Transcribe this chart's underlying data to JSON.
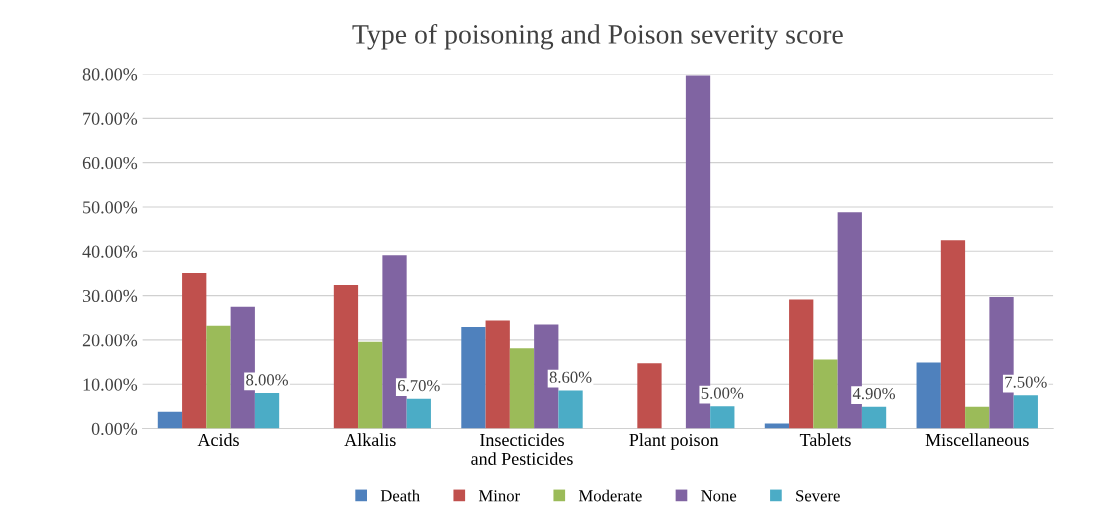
{
  "chart_data": {
    "type": "bar",
    "title": "Type of poisoning and Poison severity score",
    "categories": [
      "Acids",
      "Alkalis",
      "Insecticides\nand Pesticides",
      "Plant poison",
      "Tablets",
      "Miscellaneous"
    ],
    "series": [
      {
        "name": "Death",
        "color": "#4f81bd",
        "values": [
          3.8,
          0,
          22.9,
          0,
          1.1,
          14.9
        ]
      },
      {
        "name": "Minor",
        "color": "#c0504d",
        "values": [
          35.1,
          32.4,
          24.4,
          14.7,
          29.1,
          42.5
        ]
      },
      {
        "name": "Moderate",
        "color": "#9bbb59",
        "values": [
          23.2,
          19.6,
          18.1,
          0,
          15.6,
          4.9
        ]
      },
      {
        "name": "None",
        "color": "#8064a2",
        "values": [
          27.5,
          39.1,
          23.5,
          79.7,
          48.8,
          29.7
        ]
      },
      {
        "name": "Severe",
        "color": "#4bacc6",
        "values": [
          8.0,
          6.7,
          8.6,
          5.0,
          4.9,
          7.5
        ],
        "value_labels": [
          "8.00%",
          "6.70%",
          "8.60%",
          "5.00%",
          "4.90%",
          "7.50%"
        ]
      }
    ],
    "ylim": [
      0,
      80
    ],
    "yticks": [
      {
        "value": 0,
        "label": "0.00%"
      },
      {
        "value": 10,
        "label": "10.00%"
      },
      {
        "value": 20,
        "label": "20.00%"
      },
      {
        "value": 30,
        "label": "30.00%"
      },
      {
        "value": 40,
        "label": "40.00%"
      },
      {
        "value": 50,
        "label": "50.00%"
      },
      {
        "value": 60,
        "label": "60.00%"
      },
      {
        "value": 70,
        "label": "70.00%"
      },
      {
        "value": 80,
        "label": "80.00%"
      }
    ],
    "grid": "y",
    "legend": "bottom"
  }
}
